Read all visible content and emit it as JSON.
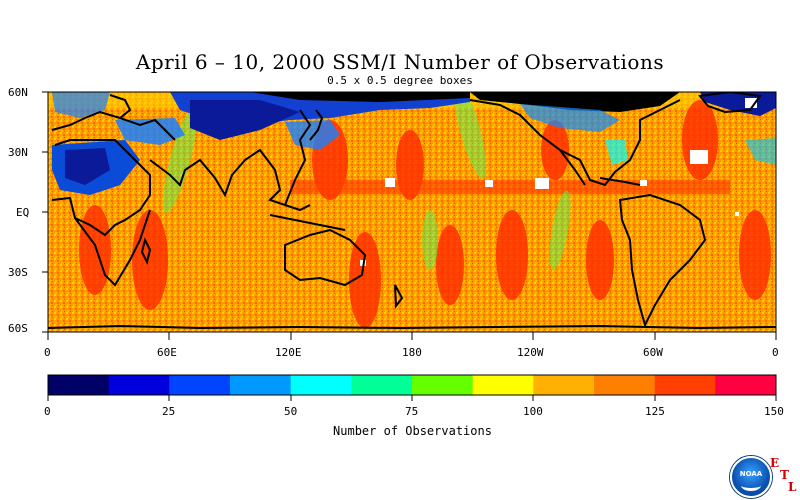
{
  "title": "April 6 – 10, 2000 SSM/I Number of Observations",
  "subtitle": "0.5 x 0.5 degree boxes",
  "lat_labels": [
    "60N",
    "30N",
    "EQ",
    "30S",
    "60S"
  ],
  "lon_labels": [
    "0",
    "60E",
    "120E",
    "180",
    "120W",
    "60W",
    "0"
  ],
  "colorbar": {
    "title": "Number of Observations",
    "tick_labels": [
      "0",
      "25",
      "50",
      "75",
      "100",
      "125",
      "150"
    ],
    "colors": [
      "#000066",
      "#0000dd",
      "#0044ff",
      "#0099ff",
      "#00ffff",
      "#00ff99",
      "#66ff00",
      "#ffff00",
      "#ffb000",
      "#ff8000",
      "#ff4000",
      "#ff0040"
    ]
  },
  "logo": {
    "text": "NOAA",
    "icon": "noaa-logo-icon"
  },
  "etl_letters": [
    "E",
    "T",
    "L"
  ],
  "chart_data": {
    "type": "heatmap",
    "title": "April 6 – 10, 2000 SSM/I Number of Observations",
    "subtitle": "0.5 x 0.5 degree boxes",
    "xlabel": "",
    "ylabel": "",
    "xlim": [
      0,
      360
    ],
    "ylim": [
      -60,
      60
    ],
    "colorbar_range": [
      0,
      150
    ],
    "colorbar_label": "Number of Observations"
  }
}
